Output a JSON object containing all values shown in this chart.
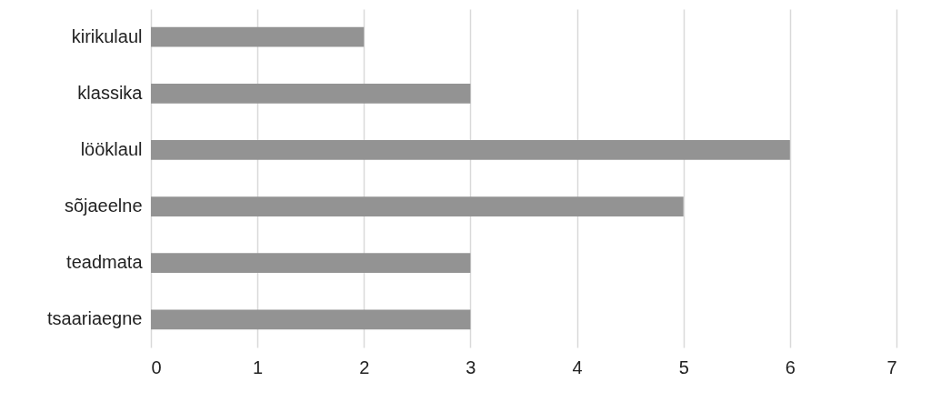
{
  "chart_data": {
    "type": "bar",
    "orientation": "horizontal",
    "categories": [
      "kirikulaul",
      "klassika",
      "lööklaul",
      "sõjaeelne",
      "teadmata",
      "tsaariaegne"
    ],
    "values": [
      2,
      3,
      6,
      5,
      3,
      3
    ],
    "color": "#939393",
    "xlim": [
      0,
      7
    ],
    "xticks": [
      0,
      1,
      2,
      3,
      4,
      5,
      6,
      7
    ],
    "grid": "x"
  }
}
